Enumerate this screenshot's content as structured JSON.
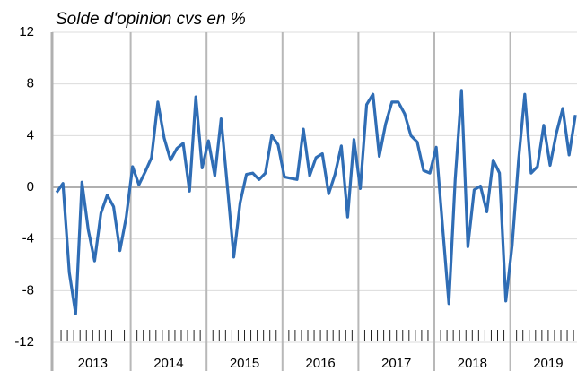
{
  "chart_data": {
    "type": "line",
    "title": "Solde d'opinion cvs en %",
    "categories": [
      "2013",
      null,
      null,
      null,
      null,
      null,
      null,
      null,
      null,
      null,
      null,
      null,
      "2014",
      null,
      null,
      null,
      null,
      null,
      null,
      null,
      null,
      null,
      null,
      null,
      "2015",
      null,
      null,
      null,
      null,
      null,
      null,
      null,
      null,
      null,
      null,
      null,
      "2016",
      null,
      null,
      null,
      null,
      null,
      null,
      null,
      null,
      null,
      null,
      null,
      "2017",
      null,
      null,
      null,
      null,
      null,
      null,
      null,
      null,
      null,
      null,
      null,
      "2018",
      null,
      null,
      null,
      null,
      null,
      null,
      null,
      null,
      null,
      null,
      null,
      "2019",
      null,
      null,
      null,
      null,
      null,
      null,
      null,
      null,
      null,
      null
    ],
    "series": [
      {
        "color": "#2f6db5",
        "values": [
          -0.4,
          0.3,
          -6.6,
          -9.8,
          0.4,
          -3.3,
          -5.7,
          -2.0,
          -0.6,
          -1.5,
          -4.9,
          -2.3,
          1.6,
          0.2,
          1.2,
          2.3,
          6.6,
          3.8,
          2.1,
          3.0,
          3.4,
          -0.3,
          7.0,
          1.5,
          3.6,
          0.9,
          5.3,
          0.0,
          -5.4,
          -1.2,
          1.0,
          1.1,
          0.6,
          1.1,
          4.0,
          3.3,
          0.8,
          0.7,
          0.6,
          4.5,
          0.9,
          2.3,
          2.6,
          -0.5,
          1.0,
          3.2,
          -2.3,
          3.7,
          -0.1,
          6.4,
          7.2,
          2.4,
          4.9,
          6.6,
          6.6,
          5.7,
          4.0,
          3.5,
          1.3,
          1.1,
          3.1,
          -3.0,
          -9.0,
          0.6,
          7.5,
          -4.6,
          -0.2,
          0.1,
          -1.9,
          2.1,
          1.1,
          -8.8,
          -4.5,
          2.0,
          7.2,
          1.1,
          1.6,
          4.8,
          1.7,
          4.2,
          6.1,
          2.5,
          5.6
        ]
      }
    ],
    "ylim": [
      -12,
      12
    ],
    "yticks": [
      -12,
      -8,
      -4,
      0,
      4,
      8,
      12
    ],
    "grid": true
  }
}
